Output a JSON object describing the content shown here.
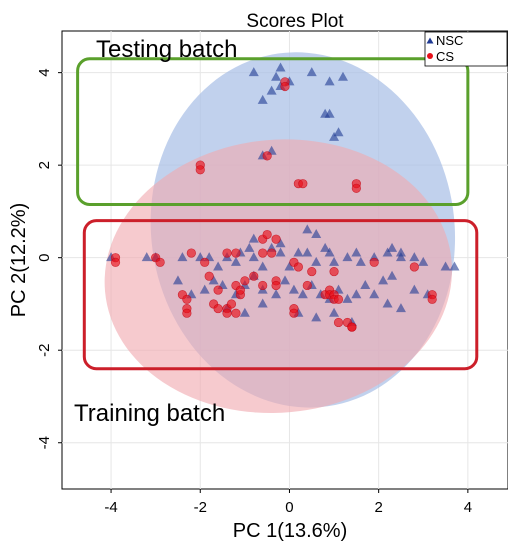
{
  "chart_data": {
    "type": "scatter",
    "title": "Scores Plot",
    "xlabel": "PC 1(13.6%)",
    "ylabel": "PC 2(12.2%)",
    "xlim": [
      -5.1,
      4.9
    ],
    "ylim": [
      -5.0,
      4.9
    ],
    "xticks": [
      -4,
      -2,
      0,
      2,
      4
    ],
    "yticks": [
      4,
      2,
      0,
      -2,
      -4
    ],
    "grid": true,
    "legend_position": "top-right",
    "annotations": {
      "testing_label": "Testing batch",
      "training_label": "Training batch"
    },
    "colors": {
      "nsc_marker": "#1f3a93",
      "cs_marker": "#e8101a",
      "nsc_ellipse": "#a9bfe6",
      "cs_ellipse": "#f0aab0",
      "testing_box": "#5aa02c",
      "training_box": "#cc1f2a"
    },
    "series": [
      {
        "name": "NSC",
        "marker": "triangle",
        "points": [
          [
            -0.8,
            4.0
          ],
          [
            -0.3,
            3.9
          ],
          [
            -0.2,
            4.1
          ],
          [
            0.0,
            3.8
          ],
          [
            -0.4,
            3.6
          ],
          [
            -0.2,
            3.7
          ],
          [
            -0.6,
            3.4
          ],
          [
            0.5,
            4.0
          ],
          [
            0.9,
            3.8
          ],
          [
            1.2,
            3.9
          ],
          [
            0.8,
            3.1
          ],
          [
            0.9,
            3.1
          ],
          [
            1.0,
            2.6
          ],
          [
            1.1,
            2.7
          ],
          [
            -0.4,
            2.3
          ],
          [
            -0.6,
            2.2
          ],
          [
            -4.0,
            -0.0
          ],
          [
            -3.2,
            0.0
          ],
          [
            -3.0,
            0.0
          ],
          [
            -2.4,
            0.0
          ],
          [
            -2.0,
            0.0
          ],
          [
            -1.8,
            0.0
          ],
          [
            -1.6,
            -0.2
          ],
          [
            -1.4,
            0.0
          ],
          [
            -1.2,
            -0.1
          ],
          [
            -1.1,
            0.1
          ],
          [
            -0.9,
            0.2
          ],
          [
            -0.8,
            0.0
          ],
          [
            -0.6,
            -0.2
          ],
          [
            -0.4,
            0.2
          ],
          [
            -0.2,
            0.1
          ],
          [
            0.0,
            -0.2
          ],
          [
            0.2,
            0.1
          ],
          [
            0.4,
            0.1
          ],
          [
            0.6,
            -0.1
          ],
          [
            0.8,
            0.2
          ],
          [
            1.0,
            -0.1
          ],
          [
            1.3,
            0.0
          ],
          [
            1.6,
            -0.1
          ],
          [
            1.9,
            0.0
          ],
          [
            2.2,
            0.1
          ],
          [
            2.5,
            0.0
          ],
          [
            2.8,
            0.0
          ],
          [
            3.0,
            -0.1
          ],
          [
            3.5,
            -0.2
          ],
          [
            3.7,
            -0.2
          ],
          [
            2.3,
            0.2
          ],
          [
            2.5,
            0.1
          ],
          [
            -2.5,
            -0.5
          ],
          [
            -2.2,
            -0.8
          ],
          [
            -1.9,
            -0.7
          ],
          [
            -1.7,
            -0.5
          ],
          [
            -1.5,
            -0.6
          ],
          [
            -1.2,
            -0.8
          ],
          [
            -1.0,
            -0.6
          ],
          [
            -0.8,
            -0.4
          ],
          [
            -0.6,
            -0.7
          ],
          [
            -0.3,
            -0.8
          ],
          [
            -0.1,
            -0.5
          ],
          [
            0.1,
            -0.7
          ],
          [
            0.3,
            -0.8
          ],
          [
            0.5,
            -0.6
          ],
          [
            0.7,
            -0.8
          ],
          [
            0.9,
            -0.9
          ],
          [
            1.1,
            -0.7
          ],
          [
            1.3,
            -0.9
          ],
          [
            1.5,
            -0.8
          ],
          [
            1.7,
            -0.6
          ],
          [
            1.9,
            -0.8
          ],
          [
            2.1,
            -0.5
          ],
          [
            2.3,
            -0.4
          ],
          [
            2.8,
            -0.7
          ],
          [
            3.1,
            -0.8
          ],
          [
            -1.4,
            -1.1
          ],
          [
            -1.0,
            -1.2
          ],
          [
            -0.6,
            -1.0
          ],
          [
            0.2,
            -1.2
          ],
          [
            0.6,
            -1.3
          ],
          [
            1.0,
            -1.2
          ],
          [
            1.4,
            -1.4
          ],
          [
            2.2,
            -1.0
          ],
          [
            2.5,
            -1.1
          ],
          [
            0.4,
            0.6
          ],
          [
            0.6,
            0.5
          ],
          [
            -0.8,
            0.4
          ],
          [
            -0.2,
            0.3
          ],
          [
            0.9,
            0.1
          ],
          [
            1.5,
            0.1
          ]
        ]
      },
      {
        "name": "CS",
        "marker": "circle",
        "points": [
          [
            -0.1,
            3.8
          ],
          [
            -0.1,
            3.7
          ],
          [
            -0.5,
            2.2
          ],
          [
            -2.0,
            2.0
          ],
          [
            -2.0,
            1.9
          ],
          [
            0.2,
            1.6
          ],
          [
            0.3,
            1.6
          ],
          [
            1.5,
            1.6
          ],
          [
            1.5,
            1.5
          ],
          [
            -3.9,
            -0.0
          ],
          [
            -3.9,
            -0.1
          ],
          [
            -3.0,
            -0.0
          ],
          [
            -2.9,
            -0.1
          ],
          [
            -2.2,
            0.1
          ],
          [
            -1.9,
            -0.1
          ],
          [
            -1.4,
            0.1
          ],
          [
            -1.2,
            0.1
          ],
          [
            -0.6,
            0.4
          ],
          [
            -0.5,
            0.5
          ],
          [
            -0.3,
            0.4
          ],
          [
            -0.6,
            0.1
          ],
          [
            -0.4,
            0.1
          ],
          [
            0.1,
            -0.1
          ],
          [
            0.5,
            -0.3
          ],
          [
            1.0,
            -0.3
          ],
          [
            1.9,
            -0.1
          ],
          [
            2.8,
            -0.2
          ],
          [
            -2.4,
            -0.8
          ],
          [
            -2.3,
            -0.9
          ],
          [
            -2.3,
            -1.1
          ],
          [
            -2.3,
            -1.2
          ],
          [
            -1.6,
            -0.7
          ],
          [
            -1.7,
            -1.0
          ],
          [
            -1.6,
            -1.1
          ],
          [
            -1.4,
            -1.1
          ],
          [
            -1.4,
            -1.2
          ],
          [
            -1.3,
            -1.0
          ],
          [
            -1.2,
            -1.2
          ],
          [
            -1.1,
            -0.8
          ],
          [
            -1.2,
            -0.6
          ],
          [
            -1.1,
            -0.7
          ],
          [
            -0.8,
            -0.4
          ],
          [
            -0.6,
            -0.6
          ],
          [
            -0.3,
            -0.5
          ],
          [
            -0.3,
            -0.6
          ],
          [
            0.1,
            -1.1
          ],
          [
            0.1,
            -1.2
          ],
          [
            0.4,
            -0.6
          ],
          [
            0.8,
            -0.8
          ],
          [
            0.9,
            -0.7
          ],
          [
            0.9,
            -0.8
          ],
          [
            1.0,
            -0.8
          ],
          [
            1.0,
            -0.9
          ],
          [
            1.1,
            -0.9
          ],
          [
            1.1,
            -1.4
          ],
          [
            1.3,
            -1.4
          ],
          [
            1.4,
            -1.5
          ],
          [
            1.4,
            -1.5
          ],
          [
            3.2,
            -0.8
          ],
          [
            3.2,
            -0.9
          ],
          [
            -1.8,
            -0.4
          ],
          [
            -1.0,
            -0.5
          ],
          [
            0.2,
            -0.2
          ]
        ]
      }
    ],
    "ellipses": [
      {
        "series": "NSC",
        "center": [
          0.3,
          0.6
        ],
        "rx": 3.4,
        "ry": 3.85,
        "rotation_deg": -8
      },
      {
        "series": "CS",
        "center": [
          -0.25,
          -0.4
        ],
        "rx": 3.9,
        "ry": 2.95,
        "rotation_deg": -5
      }
    ],
    "boxes": [
      {
        "name": "testing",
        "x0": -4.75,
        "x1": 4.0,
        "y0": 1.15,
        "y1": 4.3
      },
      {
        "name": "training",
        "x0": -4.6,
        "x1": 4.2,
        "y0": -2.4,
        "y1": 0.8
      }
    ]
  }
}
